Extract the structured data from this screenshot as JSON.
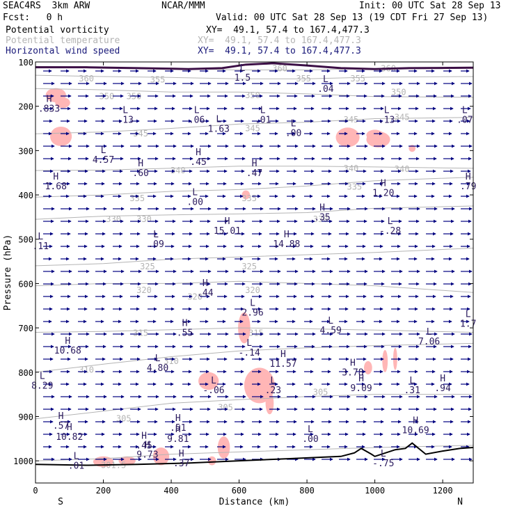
{
  "header": {
    "model": "SEAC4RS  3km ARW",
    "institution": "NCAR/MMM",
    "init": "Init: 00 UTC Sat 28 Sep 13",
    "fcst": "Fcst:   0 h",
    "valid": "Valid: 00 UTC Sat 28 Sep 13 (19 CDT Fri 27 Sep 13)",
    "fields": [
      {
        "name": "Potential vorticity",
        "xy": "XY=  49.1, 57.4 to 167.4,477.3",
        "color": "#000000"
      },
      {
        "name": "Potential temperature",
        "xy": "XY=  49.1, 57.4 to 167.4,477.3",
        "color": "#b4b4b4"
      },
      {
        "name": "Horizontal wind speed",
        "xy": "XY=  49.1, 57.4 to 167.4,477.3",
        "color": "#1a1a7a"
      }
    ]
  },
  "chart_data": {
    "type": "cross-section",
    "xlabel": "Distance (km)",
    "ylabel": "Pressure (hPa)",
    "xlim": [
      0,
      1290
    ],
    "ylim": [
      1050,
      100
    ],
    "xticks": [
      0,
      200,
      400,
      600,
      800,
      1000,
      1200
    ],
    "yticks": [
      100,
      200,
      300,
      400,
      500,
      600,
      700,
      800,
      900,
      1000
    ],
    "endpoint_labels": {
      "left": "S",
      "right": "N"
    },
    "colors": {
      "isentrope": "#b4b4b4",
      "wind": "#000080",
      "extrema": "#2a1a5e",
      "pv_fill": "#ffb6b6",
      "pv_line": "#3c0f46",
      "terrain": "#000000"
    },
    "isentropes": [
      {
        "label": "360",
        "points": [
          [
            0,
            110
          ],
          [
            200,
            112
          ],
          [
            400,
            115
          ],
          [
            600,
            118
          ],
          [
            800,
            118
          ],
          [
            1000,
            115
          ],
          [
            1290,
            114
          ]
        ]
      },
      {
        "label": "355",
        "points": [
          [
            0,
            130
          ],
          [
            200,
            133
          ],
          [
            400,
            135
          ],
          [
            600,
            138
          ],
          [
            800,
            138
          ],
          [
            1000,
            134
          ],
          [
            1290,
            133
          ]
        ]
      },
      {
        "label": "350",
        "points": [
          [
            0,
            160
          ],
          [
            200,
            163
          ],
          [
            400,
            168
          ],
          [
            600,
            168
          ],
          [
            800,
            172
          ],
          [
            1000,
            178
          ],
          [
            1290,
            180
          ]
        ]
      },
      {
        "label": "345",
        "points": [
          [
            0,
            262
          ],
          [
            200,
            258
          ],
          [
            400,
            250
          ],
          [
            600,
            240
          ],
          [
            800,
            236
          ],
          [
            1000,
            228
          ],
          [
            1290,
            225
          ]
        ]
      },
      {
        "label": "340",
        "points": [
          [
            0,
            345
          ],
          [
            200,
            344
          ],
          [
            400,
            340
          ],
          [
            600,
            335
          ],
          [
            800,
            335
          ],
          [
            1000,
            337
          ],
          [
            1290,
            340
          ]
        ]
      },
      {
        "label": "335",
        "points": [
          [
            0,
            405
          ],
          [
            200,
            400
          ],
          [
            400,
            392
          ],
          [
            600,
            388
          ],
          [
            800,
            380
          ],
          [
            1000,
            368
          ],
          [
            1290,
            360
          ]
        ]
      },
      {
        "label": "330",
        "points": [
          [
            0,
            455
          ],
          [
            200,
            448
          ],
          [
            400,
            445
          ],
          [
            600,
            443
          ],
          [
            800,
            440
          ],
          [
            1000,
            430
          ],
          [
            1290,
            425
          ]
        ]
      },
      {
        "label": "325",
        "points": [
          [
            0,
            560
          ],
          [
            200,
            555
          ],
          [
            400,
            545
          ],
          [
            600,
            540
          ],
          [
            800,
            535
          ],
          [
            1000,
            530
          ],
          [
            1290,
            520
          ]
        ]
      },
      {
        "label": "320",
        "points": [
          [
            0,
            605
          ],
          [
            200,
            600
          ],
          [
            400,
            600
          ],
          [
            600,
            595
          ],
          [
            800,
            600
          ],
          [
            1000,
            605
          ],
          [
            1290,
            620
          ]
        ]
      },
      {
        "label": "315",
        "points": [
          [
            0,
            710
          ],
          [
            200,
            708
          ],
          [
            400,
            704
          ],
          [
            600,
            700
          ],
          [
            800,
            702
          ],
          [
            1000,
            705
          ],
          [
            1290,
            710
          ]
        ]
      },
      {
        "label": "310",
        "points": [
          [
            0,
            800
          ],
          [
            200,
            782
          ],
          [
            400,
            765
          ],
          [
            600,
            752
          ],
          [
            800,
            745
          ],
          [
            1000,
            740
          ],
          [
            1290,
            735
          ]
        ]
      },
      {
        "label": "305",
        "points": [
          [
            0,
            905
          ],
          [
            200,
            888
          ],
          [
            400,
            870
          ],
          [
            600,
            862
          ],
          [
            800,
            855
          ],
          [
            1000,
            850
          ],
          [
            1290,
            850
          ]
        ]
      },
      {
        "label": "301.5",
        "points": [
          [
            0,
            1000
          ],
          [
            200,
            995
          ],
          [
            400,
            985
          ],
          [
            600,
            980
          ],
          [
            800,
            975
          ],
          [
            1000,
            970
          ],
          [
            1290,
            965
          ]
        ]
      }
    ],
    "isentrope_labels": [
      {
        "text": "360",
        "x": 150,
        "p": 138
      },
      {
        "text": "355",
        "x": 360,
        "p": 140
      },
      {
        "text": "350",
        "x": 210,
        "p": 178
      },
      {
        "text": "350",
        "x": 290,
        "p": 178
      },
      {
        "text": "350",
        "x": 640,
        "p": 175
      },
      {
        "text": "360",
        "x": 720,
        "p": 115
      },
      {
        "text": "360",
        "x": 1040,
        "p": 115
      },
      {
        "text": "355",
        "x": 790,
        "p": 138
      },
      {
        "text": "355",
        "x": 950,
        "p": 138
      },
      {
        "text": "350",
        "x": 1070,
        "p": 168
      },
      {
        "text": "345",
        "x": 310,
        "p": 262
      },
      {
        "text": "345",
        "x": 640,
        "p": 250
      },
      {
        "text": "345",
        "x": 930,
        "p": 230
      },
      {
        "text": "345",
        "x": 1080,
        "p": 225
      },
      {
        "text": "340",
        "x": 420,
        "p": 345
      },
      {
        "text": "340",
        "x": 930,
        "p": 340
      },
      {
        "text": "340",
        "x": 1080,
        "p": 342
      },
      {
        "text": "335",
        "x": 300,
        "p": 408
      },
      {
        "text": "335",
        "x": 630,
        "p": 408
      },
      {
        "text": "335",
        "x": 940,
        "p": 382
      },
      {
        "text": "330",
        "x": 230,
        "p": 455
      },
      {
        "text": "330",
        "x": 320,
        "p": 455
      },
      {
        "text": "330",
        "x": 840,
        "p": 455
      },
      {
        "text": "325",
        "x": 330,
        "p": 562
      },
      {
        "text": "325",
        "x": 630,
        "p": 562
      },
      {
        "text": "320",
        "x": 320,
        "p": 615
      },
      {
        "text": "320",
        "x": 470,
        "p": 630
      },
      {
        "text": "320",
        "x": 640,
        "p": 615
      },
      {
        "text": "315",
        "x": 310,
        "p": 712
      },
      {
        "text": "315",
        "x": 650,
        "p": 712
      },
      {
        "text": "310",
        "x": 150,
        "p": 795
      },
      {
        "text": "310",
        "x": 400,
        "p": 775
      },
      {
        "text": "305",
        "x": 260,
        "p": 905
      },
      {
        "text": "305",
        "x": 560,
        "p": 880
      },
      {
        "text": "305",
        "x": 840,
        "p": 845
      },
      {
        "text": "301.5",
        "x": 230,
        "p": 1010
      }
    ],
    "extrema": [
      {
        "type": "H",
        "value": ".833",
        "x": 40,
        "p": 200
      },
      {
        "type": "H",
        "value": "1.68",
        "x": 60,
        "p": 375
      },
      {
        "type": "L",
        "value": ".11",
        "x": 15,
        "p": 510
      },
      {
        "type": "H",
        "value": "10.68",
        "x": 95,
        "p": 745
      },
      {
        "type": "L",
        "value": "8.29",
        "x": 20,
        "p": 825
      },
      {
        "type": "H",
        "value": "10.82",
        "x": 100,
        "p": 940
      },
      {
        "type": "H",
        "value": ".57",
        "x": 75,
        "p": 915
      },
      {
        "type": "L",
        "value": ".01",
        "x": 120,
        "p": 1005
      },
      {
        "type": "L",
        "value": ".13",
        "x": 265,
        "p": 225
      },
      {
        "type": "L",
        "value": "4.57",
        "x": 200,
        "p": 315
      },
      {
        "type": "H",
        "value": ".60",
        "x": 310,
        "p": 345
      },
      {
        "type": "L",
        "value": ".09",
        "x": 355,
        "p": 505
      },
      {
        "type": "L",
        "value": "4.80",
        "x": 360,
        "p": 785
      },
      {
        "type": "H",
        "value": "9.73",
        "x": 330,
        "p": 980
      },
      {
        "type": "H",
        "value": ".45",
        "x": 320,
        "p": 960
      },
      {
        "type": "H",
        "value": ".37",
        "x": 430,
        "p": 1000
      },
      {
        "type": "H",
        "value": "9.81",
        "x": 420,
        "p": 945
      },
      {
        "type": "H",
        "value": ".51",
        "x": 420,
        "p": 920
      },
      {
        "type": "H",
        "value": ".55",
        "x": 440,
        "p": 705
      },
      {
        "type": "H",
        "value": ".44",
        "x": 500,
        "p": 615
      },
      {
        "type": "L",
        "value": "-.06",
        "x": 525,
        "p": 835
      },
      {
        "type": "L",
        "value": ".06",
        "x": 475,
        "p": 225
      },
      {
        "type": "L",
        "value": "1.63",
        "x": 540,
        "p": 245
      },
      {
        "type": "H",
        "value": ".45",
        "x": 480,
        "p": 320
      },
      {
        "type": "L",
        "value": ".00",
        "x": 470,
        "p": 410
      },
      {
        "type": "H",
        "value": "15.01",
        "x": 565,
        "p": 475
      },
      {
        "type": "L",
        "value": "1.5",
        "x": 610,
        "p": 130
      },
      {
        "type": "L",
        "value": ".01",
        "x": 670,
        "p": 225
      },
      {
        "type": "H",
        "value": ".47",
        "x": 645,
        "p": 345
      },
      {
        "type": "L",
        "value": "2.96",
        "x": 640,
        "p": 660
      },
      {
        "type": "L",
        "value": "-.14",
        "x": 630,
        "p": 750
      },
      {
        "type": "L",
        "value": ".23",
        "x": 700,
        "p": 835
      },
      {
        "type": "H",
        "value": "11.57",
        "x": 730,
        "p": 775
      },
      {
        "type": "H",
        "value": "14.88",
        "x": 740,
        "p": 505
      },
      {
        "type": "L",
        "value": ".00",
        "x": 760,
        "p": 255
      },
      {
        "type": "L",
        "value": ".00",
        "x": 810,
        "p": 945
      },
      {
        "type": "L",
        "value": ".04",
        "x": 855,
        "p": 155
      },
      {
        "type": "H",
        "value": ".35",
        "x": 845,
        "p": 445
      },
      {
        "type": "L",
        "value": "4.59",
        "x": 870,
        "p": 700
      },
      {
        "type": "H",
        "value": "3.78",
        "x": 935,
        "p": 795
      },
      {
        "type": "H",
        "value": "9.09",
        "x": 960,
        "p": 830
      },
      {
        "type": "L",
        "value": ".13",
        "x": 1035,
        "p": 225
      },
      {
        "type": "H",
        "value": "1.20",
        "x": 1025,
        "p": 390
      },
      {
        "type": "L",
        "value": "-.28",
        "x": 1045,
        "p": 475
      },
      {
        "type": "L",
        "value": "7.06",
        "x": 1160,
        "p": 725
      },
      {
        "type": "L",
        "value": ".31",
        "x": 1110,
        "p": 835
      },
      {
        "type": "H",
        "value": ".94",
        "x": 1200,
        "p": 830
      },
      {
        "type": "H",
        "value": "10.69",
        "x": 1120,
        "p": 925
      },
      {
        "type": "L",
        "value": ".07",
        "x": 1265,
        "p": 225
      },
      {
        "type": "H",
        "value": ".79",
        "x": 1275,
        "p": 375
      },
      {
        "type": "L",
        "value": "1.7",
        "x": 1275,
        "p": 685
      },
      {
        "type": "L",
        "value": "-.75",
        "x": 1025,
        "p": 1000
      }
    ],
    "pv_regions": [
      {
        "cx": 60,
        "p": 175,
        "rx": 30,
        "rp": 16
      },
      {
        "cx": 75,
        "p": 268,
        "rx": 32,
        "rp": 22
      },
      {
        "cx": 80,
        "p": 192,
        "rx": 22,
        "rp": 12
      },
      {
        "cx": 920,
        "p": 270,
        "rx": 35,
        "rp": 22
      },
      {
        "cx": 1010,
        "p": 275,
        "rx": 35,
        "rp": 18
      },
      {
        "cx": 1000,
        "p": 265,
        "rx": 25,
        "rp": 12
      },
      {
        "cx": 620,
        "p": 400,
        "rx": 12,
        "rp": 10
      },
      {
        "cx": 1110,
        "p": 295,
        "rx": 10,
        "rp": 8
      },
      {
        "cx": 615,
        "p": 700,
        "rx": 18,
        "rp": 35
      },
      {
        "cx": 660,
        "p": 830,
        "rx": 45,
        "rp": 40
      },
      {
        "cx": 690,
        "p": 870,
        "rx": 12,
        "rp": 25
      },
      {
        "cx": 510,
        "p": 820,
        "rx": 30,
        "rp": 20
      },
      {
        "cx": 555,
        "p": 970,
        "rx": 18,
        "rp": 25
      },
      {
        "cx": 370,
        "p": 990,
        "rx": 24,
        "rp": 20
      },
      {
        "cx": 200,
        "p": 1002,
        "rx": 30,
        "rp": 12
      },
      {
        "cx": 270,
        "p": 1000,
        "rx": 25,
        "rp": 10
      },
      {
        "cx": 520,
        "p": 1000,
        "rx": 12,
        "rp": 10
      },
      {
        "cx": 980,
        "p": 790,
        "rx": 12,
        "rp": 15
      },
      {
        "cx": 1030,
        "p": 775,
        "rx": 8,
        "rp": 25
      },
      {
        "cx": 1060,
        "p": 770,
        "rx": 6,
        "rp": 25
      }
    ]
  }
}
